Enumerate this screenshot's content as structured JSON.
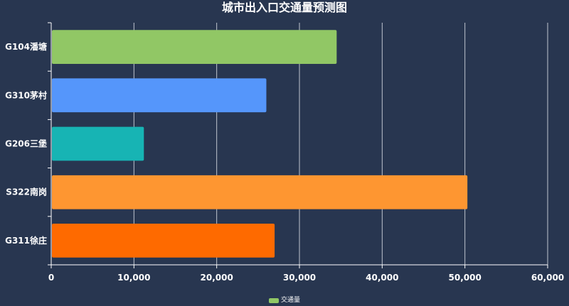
{
  "chart_data": {
    "type": "bar",
    "orientation": "horizontal",
    "title": "城市出入口交通量预测图",
    "categories": [
      "G104潘塘",
      "G310茅村",
      "G206三堡",
      "S322南岗",
      "G311徐庄"
    ],
    "series": [
      {
        "name": "交通量",
        "values": [
          34500,
          26000,
          11200,
          50300,
          27000
        ],
        "colors": [
          "#91c765",
          "#5596fb",
          "#17b4b4",
          "#fe9631",
          "#fe6a00"
        ]
      }
    ],
    "xlim": [
      0,
      60000
    ],
    "x_ticks": [
      0,
      10000,
      20000,
      30000,
      40000,
      50000,
      60000
    ],
    "x_tick_labels": [
      "0",
      "10,000",
      "20,000",
      "30,000",
      "40,000",
      "50,000",
      "60,000"
    ],
    "grid": true,
    "legend_position": "bottom-center",
    "legend_color": "#91c765"
  }
}
